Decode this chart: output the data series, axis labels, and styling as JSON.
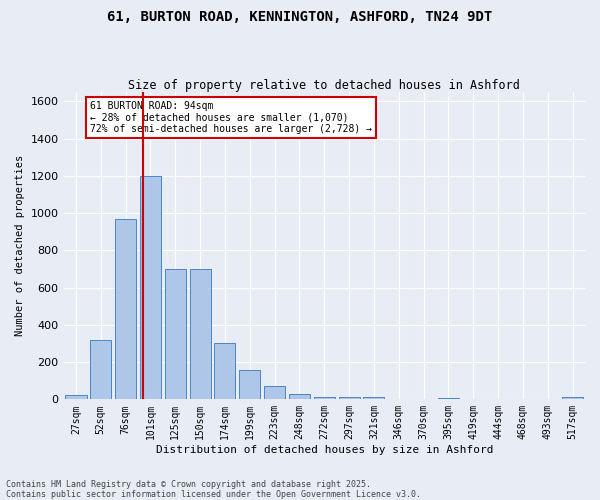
{
  "title_line1": "61, BURTON ROAD, KENNINGTON, ASHFORD, TN24 9DT",
  "title_line2": "Size of property relative to detached houses in Ashford",
  "xlabel": "Distribution of detached houses by size in Ashford",
  "ylabel": "Number of detached properties",
  "bar_color": "#aec6e8",
  "bar_edge_color": "#4a86c8",
  "background_color": "#e8ecf5",
  "grid_color": "#ffffff",
  "categories": [
    "27sqm",
    "52sqm",
    "76sqm",
    "101sqm",
    "125sqm",
    "150sqm",
    "174sqm",
    "199sqm",
    "223sqm",
    "248sqm",
    "272sqm",
    "297sqm",
    "321sqm",
    "346sqm",
    "370sqm",
    "395sqm",
    "419sqm",
    "444sqm",
    "468sqm",
    "493sqm",
    "517sqm"
  ],
  "values": [
    25,
    320,
    970,
    1200,
    700,
    700,
    305,
    160,
    70,
    30,
    15,
    15,
    10,
    0,
    0,
    5,
    0,
    0,
    0,
    0,
    10
  ],
  "ylim": [
    0,
    1650
  ],
  "yticks": [
    0,
    200,
    400,
    600,
    800,
    1000,
    1200,
    1400,
    1600
  ],
  "vline_x": 2.72,
  "annotation_text": "61 BURTON ROAD: 94sqm\n← 28% of detached houses are smaller (1,070)\n72% of semi-detached houses are larger (2,728) →",
  "annotation_box_color": "#ffffff",
  "annotation_box_edge": "#cc0000",
  "vline_color": "#cc0000",
  "footer_line1": "Contains HM Land Registry data © Crown copyright and database right 2025.",
  "footer_line2": "Contains public sector information licensed under the Open Government Licence v3.0."
}
